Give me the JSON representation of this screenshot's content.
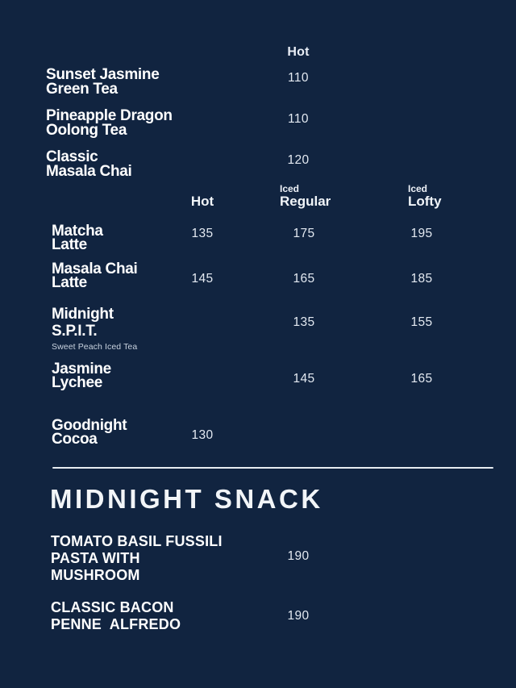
{
  "colors": {
    "background": "#112440",
    "item_name_text": "#ffffff",
    "price_text": "#e3e9f1",
    "subtitle_text": "#c9d3df",
    "divider": "#e7ecf2"
  },
  "hot_tea_section": {
    "column_header": "Hot",
    "items": [
      {
        "name": "Sunset Jasmine\nGreen Tea",
        "hot": "110"
      },
      {
        "name": "Pineapple Dragon\nOolong Tea",
        "hot": "110"
      },
      {
        "name": "Classic\nMasala Chai",
        "hot": "120"
      }
    ]
  },
  "latte_section": {
    "columns": {
      "hot": "Hot",
      "iced_regular_small": "Iced",
      "iced_regular": "Regular",
      "iced_lofty_small": "Iced",
      "iced_lofty": "Lofty"
    },
    "items": [
      {
        "name": "Matcha\nLatte",
        "hot": "135",
        "iced_regular": "175",
        "iced_lofty": "195"
      },
      {
        "name": "Masala Chai\nLatte",
        "hot": "145",
        "iced_regular": "165",
        "iced_lofty": "185"
      },
      {
        "name": "Midnight\nS.P.I.T.",
        "subtitle": "Sweet Peach Iced Tea",
        "iced_regular": "135",
        "iced_lofty": "155"
      },
      {
        "name": "Jasmine\nLychee",
        "iced_regular": "145",
        "iced_lofty": "165"
      },
      {
        "name": "Goodnight\nCocoa",
        "hot": "130"
      }
    ]
  },
  "snack_section": {
    "title": "MIDNIGHT SNACK",
    "items": [
      {
        "name": "TOMATO BASIL FUSSILI\nPASTA WITH\nMUSHROOM",
        "price": "190"
      },
      {
        "name": "CLASSIC BACON\nPENNE  ALFREDO",
        "price": "190"
      }
    ]
  }
}
